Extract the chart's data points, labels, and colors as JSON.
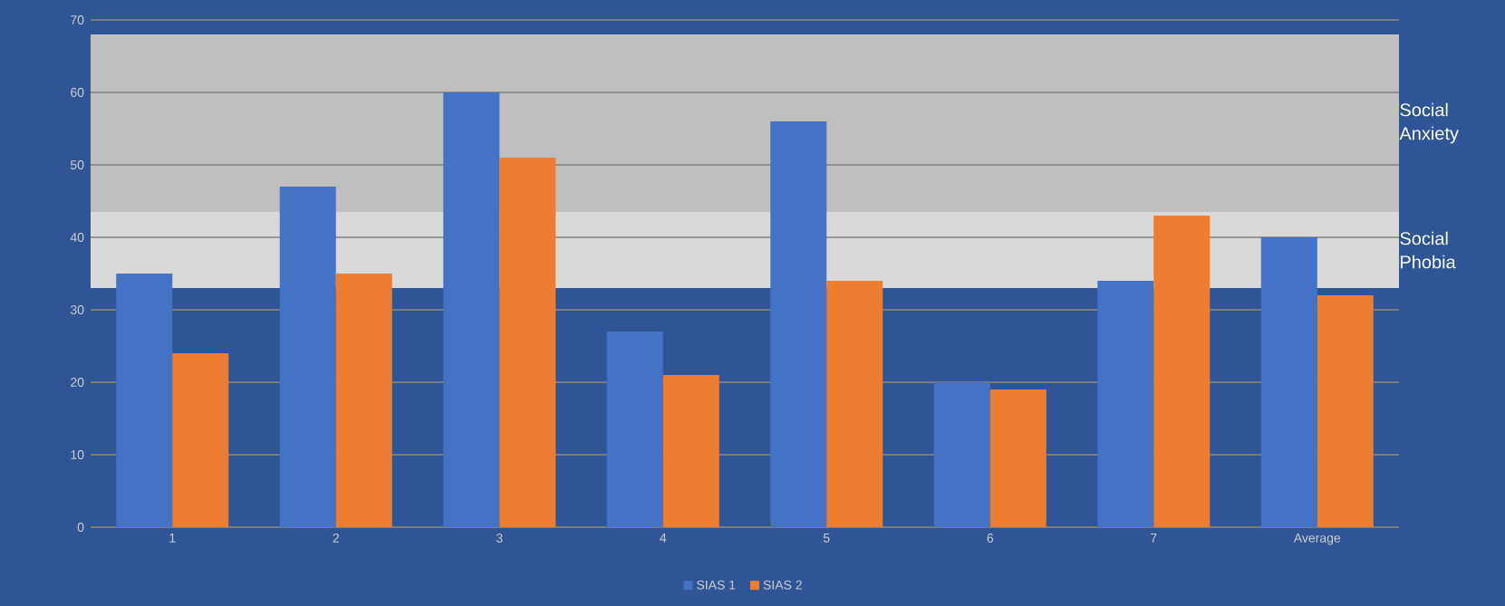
{
  "chart_data": {
    "type": "bar",
    "categories": [
      "1",
      "2",
      "3",
      "4",
      "5",
      "6",
      "7",
      "Average"
    ],
    "series": [
      {
        "name": "SIAS 1",
        "color": "#4472c4",
        "values": [
          35,
          47,
          60,
          27,
          56,
          20,
          34,
          40
        ]
      },
      {
        "name": "SIAS 2",
        "color": "#ed7d31",
        "values": [
          24,
          35,
          51,
          21,
          34,
          19,
          43,
          32
        ]
      }
    ],
    "ylim": [
      0,
      70
    ],
    "yticks": [
      0,
      10,
      20,
      30,
      40,
      50,
      60,
      70
    ],
    "grid": "y",
    "legend": "bottom",
    "bands": [
      {
        "axis": "y",
        "from": 33,
        "to": 43.5,
        "label": "Social Phobia",
        "color": "#d9d9d9"
      },
      {
        "axis": "y",
        "from": 43.5,
        "to": 68,
        "label": "Social Anxiety",
        "color": "#bfbfbf"
      }
    ]
  }
}
